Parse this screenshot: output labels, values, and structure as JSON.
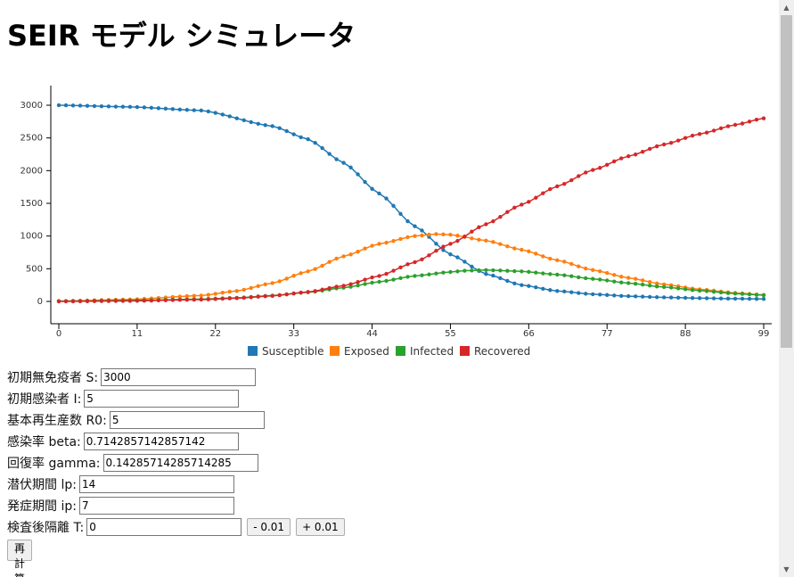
{
  "page": {
    "title": "SEIR モデル シミュレータ"
  },
  "chart_data": {
    "type": "line",
    "title": "",
    "xlabel": "",
    "ylabel": "",
    "xlim": [
      0,
      99
    ],
    "ylim": [
      -300,
      3300
    ],
    "x_ticks": [
      0,
      11,
      22,
      33,
      44,
      55,
      66,
      77,
      88,
      99
    ],
    "y_ticks": [
      0,
      500,
      1000,
      1500,
      2000,
      2500,
      3000
    ],
    "grid": false,
    "legend_placement": "bottom",
    "series": [
      {
        "name": "Susceptible",
        "color": "#1f77b4",
        "points": [
          [
            0,
            3000
          ],
          [
            10,
            2975
          ],
          [
            20,
            2920
          ],
          [
            30,
            2680
          ],
          [
            35,
            2480
          ],
          [
            40,
            2120
          ],
          [
            45,
            1650
          ],
          [
            50,
            1150
          ],
          [
            55,
            720
          ],
          [
            60,
            420
          ],
          [
            65,
            250
          ],
          [
            70,
            160
          ],
          [
            75,
            110
          ],
          [
            80,
            80
          ],
          [
            85,
            62
          ],
          [
            90,
            50
          ],
          [
            95,
            42
          ],
          [
            99,
            38
          ]
        ]
      },
      {
        "name": "Exposed",
        "color": "#ff7f0e",
        "points": [
          [
            0,
            5
          ],
          [
            10,
            30
          ],
          [
            20,
            90
          ],
          [
            25,
            160
          ],
          [
            30,
            280
          ],
          [
            35,
            460
          ],
          [
            40,
            690
          ],
          [
            45,
            880
          ],
          [
            50,
            1000
          ],
          [
            53,
            1030
          ],
          [
            55,
            1020
          ],
          [
            60,
            930
          ],
          [
            65,
            790
          ],
          [
            70,
            630
          ],
          [
            75,
            480
          ],
          [
            80,
            360
          ],
          [
            85,
            260
          ],
          [
            90,
            185
          ],
          [
            95,
            130
          ],
          [
            99,
            100
          ]
        ]
      },
      {
        "name": "Infected",
        "color": "#2ca02c",
        "points": [
          [
            0,
            5
          ],
          [
            10,
            15
          ],
          [
            20,
            35
          ],
          [
            25,
            55
          ],
          [
            30,
            90
          ],
          [
            35,
            140
          ],
          [
            40,
            210
          ],
          [
            45,
            300
          ],
          [
            50,
            390
          ],
          [
            55,
            450
          ],
          [
            57,
            470
          ],
          [
            60,
            480
          ],
          [
            65,
            460
          ],
          [
            70,
            410
          ],
          [
            75,
            345
          ],
          [
            80,
            280
          ],
          [
            85,
            220
          ],
          [
            90,
            165
          ],
          [
            95,
            120
          ],
          [
            99,
            95
          ]
        ]
      },
      {
        "name": "Recovered",
        "color": "#d62728",
        "points": [
          [
            0,
            0
          ],
          [
            10,
            8
          ],
          [
            20,
            28
          ],
          [
            25,
            50
          ],
          [
            30,
            85
          ],
          [
            35,
            145
          ],
          [
            40,
            240
          ],
          [
            45,
            390
          ],
          [
            50,
            600
          ],
          [
            55,
            880
          ],
          [
            60,
            1180
          ],
          [
            65,
            1480
          ],
          [
            70,
            1760
          ],
          [
            75,
            2010
          ],
          [
            80,
            2220
          ],
          [
            85,
            2400
          ],
          [
            90,
            2560
          ],
          [
            95,
            2700
          ],
          [
            99,
            2800
          ]
        ]
      }
    ]
  },
  "form": {
    "s": {
      "label": "初期無免疫者 S:",
      "value": "3000"
    },
    "i": {
      "label": "初期感染者 I:",
      "value": "5"
    },
    "r0": {
      "label": "基本再生産数 R0:",
      "value": "5"
    },
    "beta": {
      "label": "感染率 beta:",
      "value": "0.7142857142857142"
    },
    "gamma": {
      "label": "回復率 gamma:",
      "value": "0.14285714285714285"
    },
    "lp": {
      "label": "潜伏期間 lp:",
      "value": "14"
    },
    "ip": {
      "label": "発症期間 ip:",
      "value": "7"
    },
    "t": {
      "label": "検査後隔離 T:",
      "value": "0"
    },
    "minus_label": "- 0.01",
    "plus_label": "+ 0.01",
    "recalc_label": "再計算"
  }
}
